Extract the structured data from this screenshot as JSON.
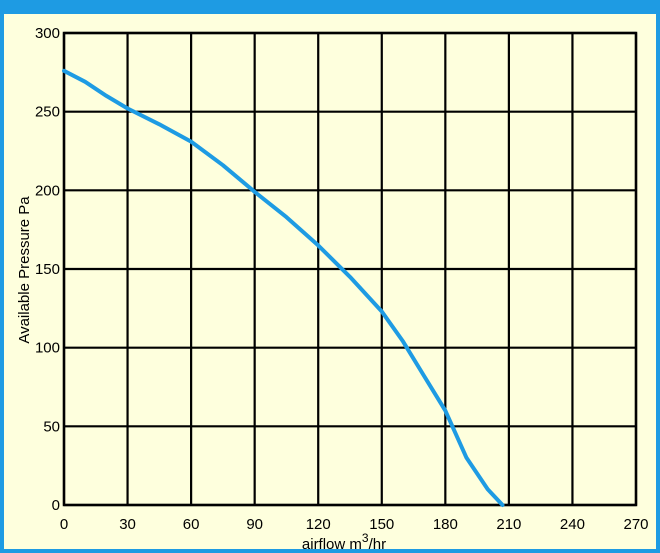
{
  "colors": {
    "frame": "#1e9be3",
    "background": "#feffdd",
    "grid": "#000000",
    "curve": "#1e9be3"
  },
  "chart_data": {
    "type": "line",
    "title": "",
    "xlabel": "airflow m³/hr",
    "xlabel_base": "airflow m",
    "xlabel_sup": "3",
    "xlabel_unit": "/hr",
    "ylabel": "Available Pressure Pa",
    "xlim": [
      0,
      270
    ],
    "ylim": [
      0,
      300
    ],
    "x_ticks": [
      0,
      30,
      60,
      90,
      120,
      150,
      180,
      210,
      240,
      270
    ],
    "y_ticks": [
      0,
      50,
      100,
      150,
      200,
      250,
      300
    ],
    "grid": true,
    "legend": "none",
    "series": [
      {
        "x": [
          0,
          10,
          20,
          30,
          45,
          60,
          75,
          90,
          105,
          120,
          135,
          150,
          160,
          170,
          180,
          190,
          200,
          207
        ],
        "y": [
          276,
          269,
          260,
          252,
          242,
          231,
          216,
          199,
          183,
          165,
          145,
          123,
          104,
          82,
          60,
          30,
          10,
          0
        ]
      }
    ]
  }
}
